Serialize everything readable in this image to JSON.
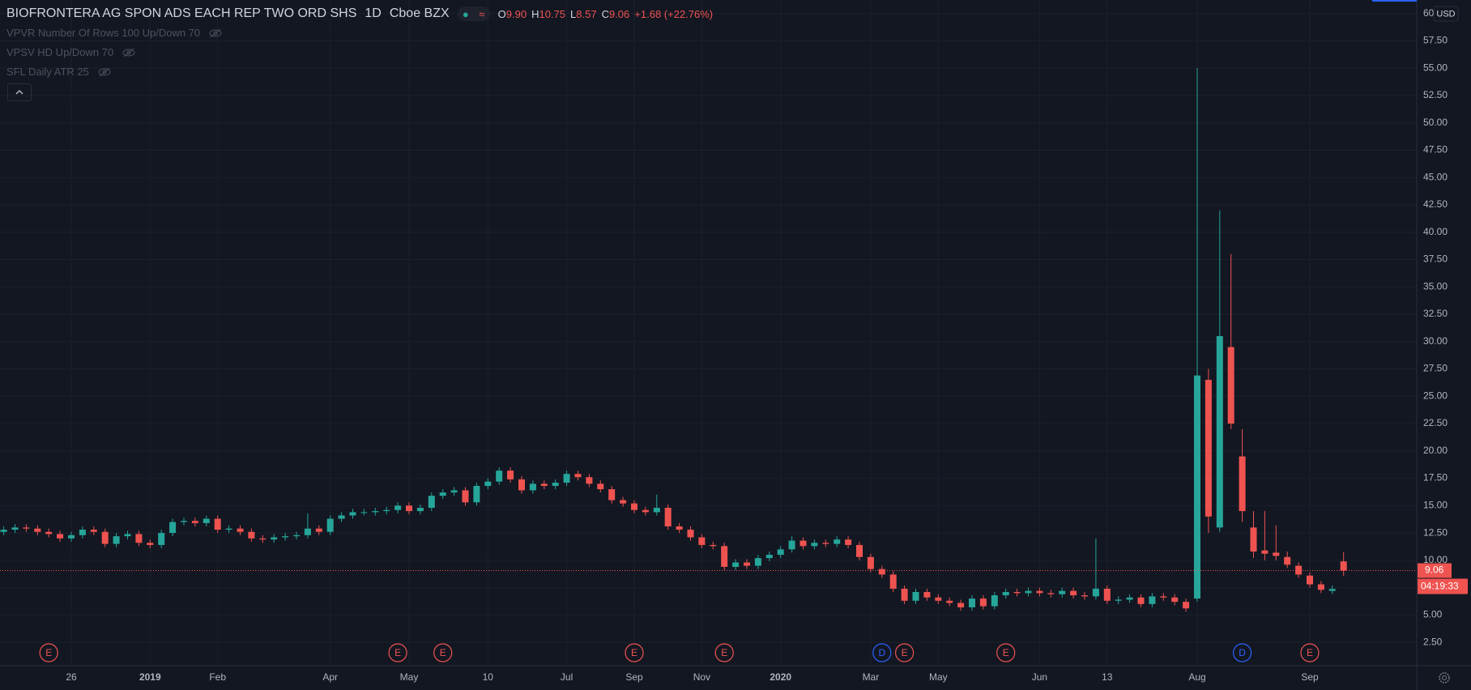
{
  "chart_data": {
    "type": "candlestick",
    "symbol": "BIOFRONTERA AG SPON ADS EACH REP TWO ORD SHS",
    "interval": "1D",
    "exchange": "Cboe BZX",
    "legend_values": [
      {
        "key": "O",
        "text": "9.90"
      },
      {
        "key": "H",
        "text": "10.75"
      },
      {
        "key": "L",
        "text": "8.57"
      },
      {
        "key": "C",
        "text": "9.06"
      }
    ],
    "change": "+1.68 (+22.76%)",
    "indicators": [
      "VPVR Number Of Rows 100 Up/Down 70",
      "VPSV HD Up/Down 70",
      "SFL Daily ATR 25"
    ],
    "currency": "USD",
    "last_price": {
      "value": 9.06,
      "label": "9.06"
    },
    "countdown": "04:19:33",
    "up_color": "#26a69a",
    "down_color": "#ef5350",
    "event_colors": {
      "E": "#ef5350",
      "D": "#2962ff"
    },
    "grid": true,
    "ylim": [
      0.36,
      61.24
    ],
    "yticks": [
      {
        "value": 2.5,
        "label": "2.50"
      },
      {
        "value": 5,
        "label": "5.00"
      },
      {
        "value": 7.5,
        "label": "7.50"
      },
      {
        "value": 10,
        "label": "10.00"
      },
      {
        "value": 12.5,
        "label": "12.50"
      },
      {
        "value": 15,
        "label": "15.00"
      },
      {
        "value": 17.5,
        "label": "17.50"
      },
      {
        "value": 20,
        "label": "20.00"
      },
      {
        "value": 22.5,
        "label": "22.50"
      },
      {
        "value": 25,
        "label": "25.00"
      },
      {
        "value": 27.5,
        "label": "27.50"
      },
      {
        "value": 30,
        "label": "30.00"
      },
      {
        "value": 32.5,
        "label": "32.50"
      },
      {
        "value": 35,
        "label": "35.00"
      },
      {
        "value": 37.5,
        "label": "37.50"
      },
      {
        "value": 40,
        "label": "40.00"
      },
      {
        "value": 42.5,
        "label": "42.50"
      },
      {
        "value": 45,
        "label": "45.00"
      },
      {
        "value": 47.5,
        "label": "47.50"
      },
      {
        "value": 50,
        "label": "50.00"
      },
      {
        "value": 52.5,
        "label": "52.50"
      },
      {
        "value": 55,
        "label": "55.00"
      },
      {
        "value": 57.5,
        "label": "57.50"
      },
      {
        "value": 60,
        "label": "60.00"
      }
    ],
    "categories": [
      null,
      null,
      null,
      null,
      null,
      null,
      "26",
      null,
      null,
      null,
      null,
      null,
      null,
      "2019",
      null,
      null,
      null,
      null,
      null,
      "Feb",
      null,
      null,
      null,
      null,
      null,
      null,
      null,
      null,
      null,
      "Apr",
      null,
      null,
      null,
      null,
      null,
      null,
      "May",
      null,
      null,
      null,
      null,
      null,
      null,
      "10",
      null,
      null,
      null,
      null,
      null,
      null,
      "Jul",
      null,
      null,
      null,
      null,
      null,
      "Sep",
      null,
      null,
      null,
      null,
      null,
      "Nov",
      null,
      null,
      null,
      null,
      null,
      null,
      "2020",
      null,
      null,
      null,
      null,
      null,
      null,
      null,
      "Mar",
      null,
      null,
      null,
      null,
      null,
      "May",
      null,
      null,
      null,
      null,
      null,
      null,
      null,
      null,
      "Jun",
      null,
      null,
      null,
      null,
      null,
      "13",
      null,
      null,
      null,
      null,
      null,
      null,
      null,
      "Aug",
      null,
      null,
      null,
      null,
      null,
      null,
      null,
      null,
      null,
      "Sep",
      null,
      null,
      null
    ],
    "events": [
      null,
      null,
      null,
      null,
      "E",
      null,
      null,
      null,
      null,
      null,
      null,
      null,
      null,
      null,
      null,
      null,
      null,
      null,
      null,
      null,
      null,
      null,
      null,
      null,
      null,
      null,
      null,
      null,
      null,
      null,
      null,
      null,
      null,
      null,
      null,
      "E",
      null,
      null,
      null,
      "E",
      null,
      null,
      null,
      null,
      null,
      null,
      null,
      null,
      null,
      null,
      null,
      null,
      null,
      null,
      null,
      null,
      "E",
      null,
      null,
      null,
      null,
      null,
      null,
      null,
      "E",
      null,
      null,
      null,
      null,
      null,
      null,
      null,
      null,
      null,
      null,
      null,
      null,
      null,
      "D",
      null,
      "E",
      null,
      null,
      null,
      null,
      null,
      null,
      null,
      null,
      "E",
      null,
      null,
      null,
      null,
      null,
      null,
      null,
      null,
      null,
      null,
      null,
      null,
      null,
      null,
      null,
      null,
      null,
      null,
      null,
      null,
      "D",
      null,
      null,
      null,
      null,
      null,
      "E",
      null,
      null,
      null
    ],
    "ohlc": {
      "open": [
        12.6,
        12.8,
        13.0,
        12.9,
        12.6,
        12.4,
        12.0,
        12.3,
        12.8,
        12.6,
        11.5,
        12.2,
        12.4,
        11.6,
        11.4,
        12.5,
        13.5,
        13.6,
        13.4,
        13.8,
        12.8,
        12.9,
        12.6,
        12.0,
        11.9,
        12.1,
        12.2,
        12.3,
        12.9,
        12.6,
        13.8,
        14.1,
        14.4,
        14.4,
        14.5,
        14.6,
        15.0,
        14.5,
        14.8,
        15.9,
        16.2,
        16.4,
        15.3,
        16.8,
        17.2,
        18.2,
        17.4,
        16.4,
        17.0,
        16.8,
        17.1,
        17.9,
        17.6,
        17.0,
        16.5,
        15.5,
        15.2,
        14.6,
        14.4,
        14.8,
        13.1,
        12.8,
        12.1,
        11.4,
        11.3,
        9.4,
        9.8,
        9.5,
        10.2,
        10.5,
        11.0,
        11.8,
        11.3,
        11.6,
        11.5,
        11.9,
        11.4,
        10.3,
        9.2,
        8.7,
        7.4,
        6.3,
        7.1,
        6.6,
        6.3,
        6.1,
        5.7,
        6.5,
        5.8,
        6.8,
        7.1,
        7.0,
        7.2,
        7.0,
        6.9,
        7.2,
        6.8,
        6.7,
        7.4,
        6.3,
        6.4,
        6.6,
        6.0,
        6.7,
        6.6,
        6.2,
        6.5,
        26.5,
        13.0,
        29.5,
        19.5,
        13.0,
        10.9,
        10.7,
        10.3,
        9.5,
        8.6,
        7.8,
        7.2,
        9.9
      ],
      "high": [
        13.1,
        13.3,
        13.3,
        13.2,
        12.9,
        12.7,
        12.6,
        13.1,
        13.1,
        12.9,
        12.5,
        12.7,
        12.7,
        11.9,
        12.8,
        13.8,
        13.9,
        13.9,
        14.1,
        14.1,
        13.2,
        13.2,
        12.9,
        12.3,
        12.4,
        12.5,
        12.6,
        14.3,
        13.2,
        14.1,
        14.4,
        14.7,
        14.7,
        14.8,
        14.9,
        15.3,
        15.3,
        15.1,
        16.2,
        16.5,
        16.7,
        16.7,
        17.1,
        17.5,
        18.5,
        18.5,
        17.7,
        17.3,
        17.3,
        17.4,
        18.2,
        18.2,
        17.9,
        17.3,
        16.8,
        15.8,
        15.5,
        14.9,
        16.0,
        15.1,
        13.4,
        13.1,
        12.4,
        11.7,
        11.6,
        10.1,
        10.1,
        10.5,
        10.8,
        11.3,
        12.2,
        12.1,
        11.9,
        11.9,
        12.2,
        12.2,
        11.7,
        10.6,
        9.5,
        9.0,
        7.7,
        7.4,
        7.4,
        6.9,
        6.6,
        6.4,
        6.8,
        6.8,
        7.1,
        7.4,
        7.4,
        7.5,
        7.5,
        7.3,
        7.5,
        7.5,
        7.1,
        12.0,
        7.7,
        6.7,
        6.9,
        6.9,
        7.0,
        7.0,
        6.9,
        6.5,
        55,
        27.5,
        42,
        38,
        22,
        14.5,
        14.5,
        13.2,
        10.8,
        9.8,
        8.9,
        8.1,
        7.7,
        10.75
      ],
      "low": [
        12.3,
        12.5,
        12.6,
        12.3,
        12.1,
        11.7,
        11.7,
        12.0,
        12.3,
        11.2,
        11.2,
        11.9,
        11.3,
        11.1,
        11.1,
        12.2,
        13.2,
        13.1,
        13.1,
        12.5,
        12.5,
        12.3,
        11.7,
        11.6,
        11.6,
        11.8,
        11.9,
        12.0,
        12.3,
        12.3,
        13.5,
        13.8,
        14.1,
        14.1,
        14.2,
        14.3,
        14.2,
        14.2,
        14.5,
        15.6,
        15.9,
        15.0,
        15.0,
        16.5,
        16.9,
        17.1,
        16.1,
        16.1,
        16.5,
        16.5,
        16.8,
        17.3,
        16.7,
        16.2,
        15.2,
        14.9,
        14.3,
        14.1,
        14.1,
        12.8,
        12.5,
        11.8,
        11.1,
        11.0,
        9.1,
        9.1,
        9.2,
        9.2,
        9.9,
        10.2,
        10.7,
        11.0,
        11.0,
        11.2,
        11.2,
        11.1,
        10.0,
        8.9,
        8.4,
        7.1,
        6.0,
        6.0,
        6.3,
        6.0,
        5.8,
        5.4,
        5.4,
        5.5,
        5.5,
        6.5,
        6.7,
        6.7,
        6.7,
        6.6,
        6.6,
        6.5,
        6.4,
        6.4,
        6.0,
        6.0,
        6.1,
        5.7,
        5.7,
        6.3,
        5.9,
        5.3,
        6.2,
        12.5,
        12.6,
        22,
        13.5,
        10.2,
        10.0,
        10.0,
        9.3,
        8.4,
        7.5,
        7.0,
        6.9,
        8.57
      ],
      "close": [
        12.8,
        13.0,
        12.9,
        12.6,
        12.4,
        12.0,
        12.3,
        12.8,
        12.6,
        11.5,
        12.2,
        12.4,
        11.6,
        11.4,
        12.5,
        13.5,
        13.6,
        13.4,
        13.8,
        12.8,
        12.9,
        12.6,
        12.0,
        11.9,
        12.1,
        12.2,
        12.3,
        12.9,
        12.6,
        13.8,
        14.1,
        14.4,
        14.4,
        14.5,
        14.6,
        15.0,
        14.5,
        14.8,
        15.9,
        16.2,
        16.4,
        15.3,
        16.8,
        17.2,
        18.2,
        17.4,
        16.4,
        17.0,
        16.8,
        17.1,
        17.9,
        17.6,
        17.0,
        16.5,
        15.5,
        15.2,
        14.6,
        14.4,
        14.8,
        13.1,
        12.8,
        12.1,
        11.4,
        11.3,
        9.4,
        9.8,
        9.5,
        10.2,
        10.5,
        11.0,
        11.8,
        11.3,
        11.6,
        11.5,
        11.9,
        11.4,
        10.3,
        9.2,
        8.7,
        7.4,
        6.3,
        7.1,
        6.6,
        6.3,
        6.1,
        5.7,
        6.5,
        5.8,
        6.8,
        7.1,
        7.0,
        7.2,
        7.0,
        6.9,
        7.2,
        6.8,
        6.7,
        7.4,
        6.3,
        6.4,
        6.6,
        6.0,
        6.7,
        6.6,
        6.2,
        5.6,
        26.9,
        14.0,
        30.5,
        22.5,
        14.5,
        10.8,
        10.6,
        10.4,
        9.6,
        8.7,
        7.8,
        7.3,
        7.38,
        9.06
      ]
    }
  }
}
